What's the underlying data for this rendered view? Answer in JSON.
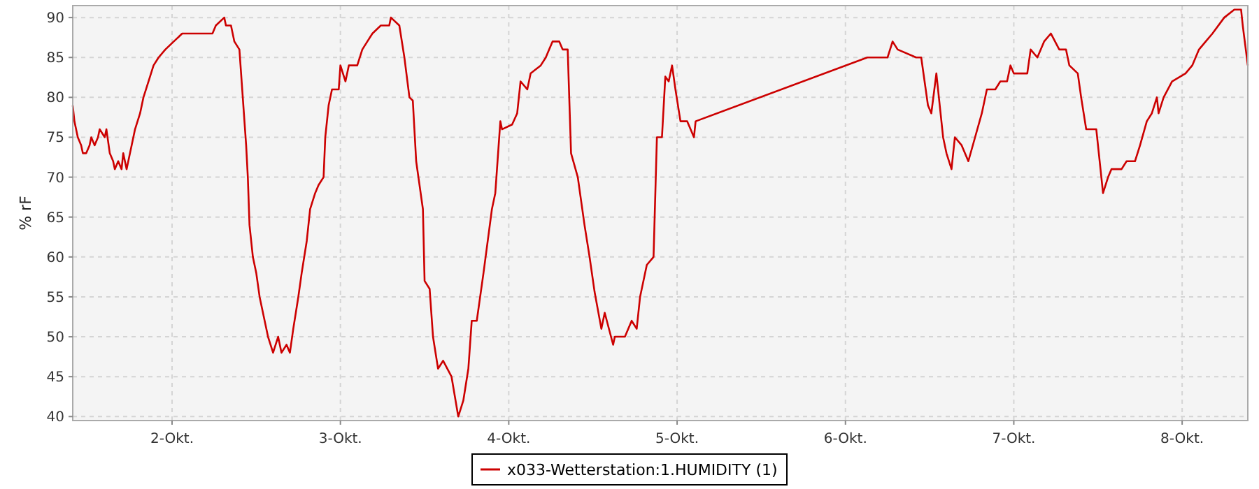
{
  "chart_data": {
    "type": "line",
    "ylabel": "% rF",
    "xlim": [
      1.41,
      8.39
    ],
    "ylim": [
      39.5,
      91.5
    ],
    "xticks": [
      {
        "value": 2,
        "label": "2-Okt."
      },
      {
        "value": 3,
        "label": "3-Okt."
      },
      {
        "value": 4,
        "label": "4-Okt."
      },
      {
        "value": 5,
        "label": "5-Okt."
      },
      {
        "value": 6,
        "label": "6-Okt."
      },
      {
        "value": 7,
        "label": "7-Okt."
      },
      {
        "value": 8,
        "label": "8-Okt."
      }
    ],
    "yticks": [
      40,
      45,
      50,
      55,
      60,
      65,
      70,
      75,
      80,
      85,
      90
    ],
    "grid": true,
    "legend": "bottom",
    "series": [
      {
        "name": "x033-Wetterstation:1.HUMIDITY (1)",
        "color": "#cc0000",
        "x": [
          1.41,
          1.42,
          1.44,
          1.46,
          1.47,
          1.49,
          1.51,
          1.52,
          1.54,
          1.56,
          1.57,
          1.6,
          1.61,
          1.63,
          1.65,
          1.66,
          1.68,
          1.7,
          1.71,
          1.73,
          1.75,
          1.76,
          1.78,
          1.81,
          1.83,
          1.86,
          1.89,
          1.92,
          1.96,
          2.01,
          2.06,
          2.24,
          2.26,
          2.31,
          2.32,
          2.35,
          2.37,
          2.4,
          2.44,
          2.45,
          2.46,
          2.48,
          2.5,
          2.52,
          2.55,
          2.57,
          2.6,
          2.63,
          2.65,
          2.68,
          2.7,
          2.72,
          2.75,
          2.77,
          2.8,
          2.82,
          2.85,
          2.87,
          2.9,
          2.91,
          2.93,
          2.95,
          2.99,
          3.0,
          3.03,
          3.05,
          3.1,
          3.13,
          3.16,
          3.19,
          3.24,
          3.29,
          3.3,
          3.35,
          3.38,
          3.41,
          3.43,
          3.45,
          3.49,
          3.5,
          3.53,
          3.55,
          3.58,
          3.61,
          3.66,
          3.7,
          3.73,
          3.76,
          3.78,
          3.81,
          3.85,
          3.9,
          3.92,
          3.95,
          3.96,
          4.02,
          4.05,
          4.07,
          4.11,
          4.13,
          4.19,
          4.22,
          4.24,
          4.26,
          4.3,
          4.32,
          4.35,
          4.37,
          4.41,
          4.45,
          4.48,
          4.51,
          4.55,
          4.57,
          4.62,
          4.63,
          4.69,
          4.73,
          4.76,
          4.78,
          4.82,
          4.86,
          4.88,
          4.91,
          4.93,
          4.95,
          4.97,
          4.99,
          5.02,
          5.06,
          5.08,
          5.1,
          5.11,
          6.13,
          6.19,
          6.25,
          6.28,
          6.31,
          6.42,
          6.45,
          6.49,
          6.51,
          6.54,
          6.56,
          6.58,
          6.6,
          6.63,
          6.65,
          6.69,
          6.73,
          6.77,
          6.81,
          6.84,
          6.89,
          6.92,
          6.96,
          6.98,
          7.0,
          7.08,
          7.1,
          7.14,
          7.18,
          7.22,
          7.27,
          7.31,
          7.33,
          7.38,
          7.4,
          7.43,
          7.49,
          7.52,
          7.53,
          7.56,
          7.58,
          7.64,
          7.67,
          7.72,
          7.75,
          7.79,
          7.82,
          7.85,
          7.86,
          7.89,
          7.94,
          8.02,
          8.06,
          8.1,
          8.14,
          8.18,
          8.25,
          8.31,
          8.35,
          8.36,
          8.39
        ],
        "values": [
          79,
          77,
          75,
          74,
          73,
          73,
          74,
          75,
          74,
          75,
          76,
          75,
          76,
          73,
          72,
          71,
          72,
          71,
          73,
          71,
          73,
          74,
          76,
          78,
          80,
          82,
          84,
          85,
          86,
          87,
          88,
          88,
          89,
          90,
          89,
          89,
          87,
          86,
          74,
          70,
          64,
          60,
          58,
          55,
          52,
          50,
          48,
          50,
          48,
          49,
          48,
          51,
          55,
          58,
          62,
          66,
          68,
          69,
          70,
          75,
          79,
          81,
          81,
          84,
          82,
          84,
          84,
          86,
          87,
          88,
          89,
          89,
          90,
          89,
          85,
          80,
          79.6,
          72,
          66,
          57,
          56,
          50,
          46,
          47,
          45,
          40,
          42,
          46,
          52,
          52,
          58,
          66,
          68,
          77,
          76,
          76.6,
          78,
          82,
          81,
          83,
          84,
          85,
          86,
          87,
          87,
          86,
          86,
          73,
          70,
          64,
          60,
          55.6,
          51,
          53,
          49,
          50,
          50,
          52,
          51,
          55,
          59,
          60,
          75,
          75,
          82.6,
          82,
          84,
          81,
          77,
          77,
          76,
          75,
          77,
          85,
          85,
          85,
          87,
          86,
          85,
          85,
          79,
          78,
          83,
          79,
          75,
          73,
          71,
          75,
          74,
          72,
          75,
          78,
          81,
          81,
          82,
          82,
          84,
          83,
          83,
          86,
          85,
          87,
          88,
          86,
          86,
          84,
          83,
          80,
          76,
          76,
          70,
          68,
          70,
          71,
          71,
          72,
          72,
          74,
          77,
          78,
          80,
          78,
          80,
          82,
          83,
          84,
          86,
          87,
          88,
          90,
          91,
          91,
          89,
          84
        ]
      }
    ]
  }
}
